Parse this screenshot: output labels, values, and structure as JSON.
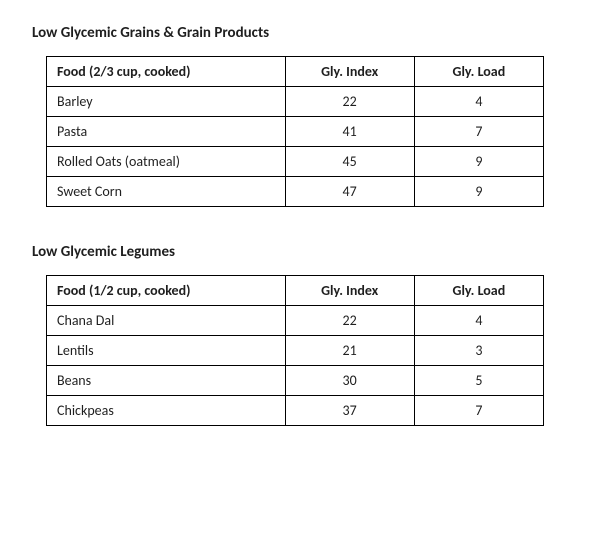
{
  "page": {
    "background_color": "#ffffff",
    "text_color": "#1f1f1f",
    "border_color": "#000000",
    "font_family": "Calibri, 'Segoe UI', Arial, sans-serif"
  },
  "sections": [
    {
      "title": "Low Glycemic Grains & Grain Products",
      "columns": [
        "Food (2/3 cup, cooked)",
        "Gly. Index",
        "Gly. Load"
      ],
      "col_align": [
        "left",
        "center",
        "center"
      ],
      "col_widths_pct": [
        48,
        26,
        26
      ],
      "rows": [
        [
          "Barley",
          22,
          4
        ],
        [
          "Pasta",
          41,
          7
        ],
        [
          "Rolled Oats (oatmeal)",
          45,
          9
        ],
        [
          "Sweet Corn",
          47,
          9
        ]
      ]
    },
    {
      "title": "Low Glycemic Legumes",
      "columns": [
        "Food (1/2 cup, cooked)",
        "Gly. Index",
        "Gly. Load"
      ],
      "col_align": [
        "left",
        "center",
        "center"
      ],
      "col_widths_pct": [
        48,
        26,
        26
      ],
      "rows": [
        [
          "Chana Dal",
          22,
          4
        ],
        [
          "Lentils",
          21,
          3
        ],
        [
          "Beans",
          30,
          5
        ],
        [
          "Chickpeas",
          37,
          7
        ]
      ]
    }
  ]
}
